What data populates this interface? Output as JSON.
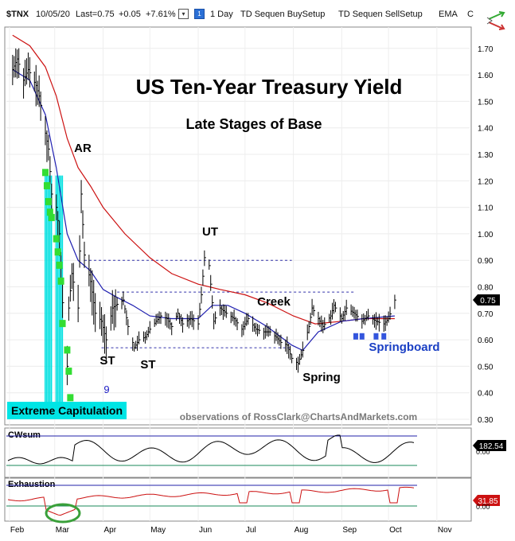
{
  "header": {
    "symbol": "$TNX",
    "date": "10/05/20",
    "last": "Last=0.75",
    "change": "+0.05",
    "change_pct": "+7.61%",
    "interval": "1 Day",
    "indicator_buy": "TD Sequen BuySetup",
    "indicator_sell": "TD Sequen SellSetup",
    "ema": "EMA",
    "truncated": "C"
  },
  "chart_data": [
    {
      "type": "candlestick",
      "title": "US Ten-Year Treasury Yield",
      "subtitle": "Late Stages of Base",
      "ylim": [
        0.28,
        1.8
      ],
      "yticks": [
        "1.70",
        "1.60",
        "1.50",
        "1.40",
        "1.30",
        "1.20",
        "1.10",
        "1.00",
        "0.90",
        "0.80",
        "0.70",
        "0.60",
        "0.50",
        "0.40",
        "0.30"
      ],
      "ytick_values": [
        1.7,
        1.6,
        1.5,
        1.4,
        1.3,
        1.2,
        1.1,
        1.0,
        0.9,
        0.8,
        0.7,
        0.6,
        0.5,
        0.4,
        0.3
      ],
      "x_months": [
        "Feb",
        "Mar",
        "Apr",
        "May",
        "Jun",
        "Jul",
        "Aug",
        "Sep",
        "Oct",
        "Nov"
      ],
      "last_value_label": "0.75",
      "colors": {
        "price": "#000000",
        "ema_fast": "#1f1fb0",
        "ema_slow": "#cc1111",
        "capitulation": "#00e0e0",
        "setup_green": "#33dd33",
        "hline": "#3333aa"
      },
      "annotations": {
        "ar": "AR",
        "ut": "UT",
        "creek": "Creek",
        "st1": "ST",
        "st2": "ST",
        "spring": "Spring",
        "springboard": "Springboard",
        "count9": "9",
        "capitulation": "Extreme Capitulation",
        "credit": "observations of RossClark@ChartsAndMarkets.com"
      },
      "levels": {
        "resistance_upper": 0.9,
        "resistance_creek": 0.78,
        "support": 0.57
      },
      "price_path": [
        [
          "2020-02-03",
          1.62
        ],
        [
          "2020-02-06",
          1.66
        ],
        [
          "2020-02-10",
          1.58
        ],
        [
          "2020-02-13",
          1.62
        ],
        [
          "2020-02-18",
          1.56
        ],
        [
          "2020-02-20",
          1.52
        ],
        [
          "2020-02-24",
          1.38
        ],
        [
          "2020-02-26",
          1.32
        ],
        [
          "2020-02-28",
          1.15
        ],
        [
          "2020-03-02",
          1.1
        ],
        [
          "2020-03-04",
          1.0
        ],
        [
          "2020-03-06",
          0.74
        ],
        [
          "2020-03-09",
          0.5
        ],
        [
          "2020-03-10",
          0.72
        ],
        [
          "2020-03-12",
          0.85
        ],
        [
          "2020-03-16",
          0.72
        ],
        [
          "2020-03-18",
          1.15
        ],
        [
          "2020-03-20",
          0.92
        ],
        [
          "2020-03-24",
          0.82
        ],
        [
          "2020-03-27",
          0.7
        ],
        [
          "2020-03-31",
          0.67
        ],
        [
          "2020-04-03",
          0.6
        ],
        [
          "2020-04-07",
          0.72
        ],
        [
          "2020-04-09",
          0.73
        ],
        [
          "2020-04-14",
          0.75
        ],
        [
          "2020-04-17",
          0.65
        ],
        [
          "2020-04-21",
          0.57
        ],
        [
          "2020-04-24",
          0.6
        ],
        [
          "2020-04-28",
          0.61
        ],
        [
          "2020-05-01",
          0.64
        ],
        [
          "2020-05-05",
          0.67
        ],
        [
          "2020-05-08",
          0.69
        ],
        [
          "2020-05-12",
          0.68
        ],
        [
          "2020-05-15",
          0.65
        ],
        [
          "2020-05-19",
          0.7
        ],
        [
          "2020-05-22",
          0.66
        ],
        [
          "2020-05-27",
          0.68
        ],
        [
          "2020-06-01",
          0.66
        ],
        [
          "2020-06-03",
          0.77
        ],
        [
          "2020-06-05",
          0.91
        ],
        [
          "2020-06-08",
          0.88
        ],
        [
          "2020-06-11",
          0.67
        ],
        [
          "2020-06-15",
          0.72
        ],
        [
          "2020-06-19",
          0.7
        ],
        [
          "2020-06-24",
          0.68
        ],
        [
          "2020-06-29",
          0.64
        ],
        [
          "2020-07-03",
          0.68
        ],
        [
          "2020-07-08",
          0.64
        ],
        [
          "2020-07-13",
          0.63
        ],
        [
          "2020-07-17",
          0.63
        ],
        [
          "2020-07-21",
          0.61
        ],
        [
          "2020-07-24",
          0.59
        ],
        [
          "2020-07-28",
          0.58
        ],
        [
          "2020-07-31",
          0.53
        ],
        [
          "2020-08-04",
          0.51
        ],
        [
          "2020-08-07",
          0.56
        ],
        [
          "2020-08-11",
          0.65
        ],
        [
          "2020-08-13",
          0.72
        ],
        [
          "2020-08-17",
          0.68
        ],
        [
          "2020-08-20",
          0.65
        ],
        [
          "2020-08-25",
          0.69
        ],
        [
          "2020-08-27",
          0.73
        ],
        [
          "2020-09-01",
          0.68
        ],
        [
          "2020-09-04",
          0.72
        ],
        [
          "2020-09-09",
          0.7
        ],
        [
          "2020-09-14",
          0.67
        ],
        [
          "2020-09-18",
          0.69
        ],
        [
          "2020-09-23",
          0.67
        ],
        [
          "2020-09-28",
          0.66
        ],
        [
          "2020-10-01",
          0.68
        ],
        [
          "2020-10-05",
          0.75
        ]
      ],
      "ema_fast_path": [
        [
          "2020-02-03",
          1.62
        ],
        [
          "2020-02-14",
          1.58
        ],
        [
          "2020-02-24",
          1.45
        ],
        [
          "2020-03-02",
          1.25
        ],
        [
          "2020-03-09",
          1.0
        ],
        [
          "2020-03-16",
          0.9
        ],
        [
          "2020-03-24",
          0.86
        ],
        [
          "2020-04-01",
          0.79
        ],
        [
          "2020-04-10",
          0.76
        ],
        [
          "2020-04-20",
          0.73
        ],
        [
          "2020-05-01",
          0.69
        ],
        [
          "2020-05-15",
          0.68
        ],
        [
          "2020-06-01",
          0.68
        ],
        [
          "2020-06-10",
          0.73
        ],
        [
          "2020-06-20",
          0.73
        ],
        [
          "2020-07-01",
          0.7
        ],
        [
          "2020-07-15",
          0.65
        ],
        [
          "2020-07-31",
          0.58
        ],
        [
          "2020-08-07",
          0.56
        ],
        [
          "2020-08-17",
          0.63
        ],
        [
          "2020-09-01",
          0.67
        ],
        [
          "2020-09-15",
          0.68
        ],
        [
          "2020-10-05",
          0.69
        ]
      ],
      "ema_slow_path": [
        [
          "2020-02-03",
          1.75
        ],
        [
          "2020-02-14",
          1.71
        ],
        [
          "2020-02-24",
          1.63
        ],
        [
          "2020-03-02",
          1.52
        ],
        [
          "2020-03-09",
          1.36
        ],
        [
          "2020-03-16",
          1.25
        ],
        [
          "2020-03-24",
          1.18
        ],
        [
          "2020-04-01",
          1.1
        ],
        [
          "2020-04-15",
          1.0
        ],
        [
          "2020-05-01",
          0.91
        ],
        [
          "2020-05-15",
          0.85
        ],
        [
          "2020-06-01",
          0.81
        ],
        [
          "2020-06-15",
          0.79
        ],
        [
          "2020-07-01",
          0.77
        ],
        [
          "2020-07-15",
          0.74
        ],
        [
          "2020-08-01",
          0.69
        ],
        [
          "2020-08-15",
          0.66
        ],
        [
          "2020-09-01",
          0.67
        ],
        [
          "2020-09-15",
          0.68
        ],
        [
          "2020-10-05",
          0.68
        ]
      ]
    },
    {
      "type": "line",
      "title": "CWsum",
      "yticks": [
        "0.00"
      ],
      "last_value_label": "182.54",
      "colors": {
        "line": "#000000",
        "bound": "#2222aa",
        "base": "#1a8a5a",
        "label_bg": "#000000"
      }
    },
    {
      "type": "line",
      "title": "Exhaustion",
      "yticks": [
        "0.00"
      ],
      "last_value_label": "31.85",
      "colors": {
        "line": "#cc1111",
        "bound": "#2222aa",
        "base": "#1a8a5a",
        "label_bg": "#cc1111",
        "highlight": "#3aa03a"
      }
    }
  ]
}
